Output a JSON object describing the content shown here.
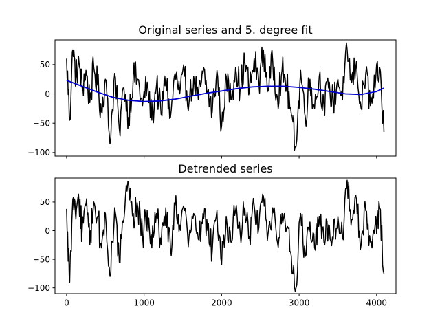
{
  "chart_data": [
    {
      "type": "line",
      "title": "Original series and 5. degree fit",
      "xlabel": "",
      "ylabel": "",
      "xlim": [
        -150,
        4250
      ],
      "ylim": [
        -106,
        92
      ],
      "xticks": [
        0,
        1000,
        2000,
        3000,
        4000
      ],
      "xtick_labels_visible": false,
      "yticks": [
        -100,
        -50,
        0,
        50
      ],
      "ytick_labels": [
        "−100",
        "−50",
        "0",
        "50"
      ],
      "grid": false,
      "series": [
        {
          "color": "#000000",
          "style": "noisy",
          "x": [
            0,
            40,
            80,
            120,
            160,
            200,
            250,
            300,
            350,
            400,
            450,
            500,
            560,
            620,
            680,
            740,
            800,
            860,
            920,
            980,
            1040,
            1100,
            1160,
            1220,
            1280,
            1340,
            1400,
            1460,
            1520,
            1580,
            1640,
            1700,
            1760,
            1820,
            1880,
            1940,
            2000,
            2060,
            2120,
            2180,
            2240,
            2300,
            2360,
            2420,
            2480,
            2540,
            2600,
            2660,
            2720,
            2780,
            2840,
            2900,
            2960,
            3020,
            3080,
            3140,
            3200,
            3260,
            3320,
            3380,
            3440,
            3500,
            3560,
            3620,
            3680,
            3740,
            3800,
            3860,
            3920,
            3980,
            4040,
            4095
          ],
          "y": [
            60,
            -45,
            75,
            30,
            55,
            10,
            40,
            -15,
            45,
            15,
            -30,
            25,
            -85,
            35,
            -60,
            10,
            -40,
            30,
            25,
            -20,
            20,
            -45,
            15,
            -35,
            30,
            -40,
            35,
            0,
            30,
            -15,
            30,
            -10,
            35,
            5,
            -30,
            40,
            -55,
            30,
            -10,
            45,
            10,
            55,
            5,
            60,
            20,
            75,
            10,
            55,
            -5,
            40,
            15,
            -35,
            -90,
            40,
            -40,
            25,
            -25,
            30,
            -20,
            10,
            -15,
            25,
            -10,
            75,
            20,
            55,
            -25,
            35,
            -20,
            10,
            45,
            -65
          ]
        },
        {
          "color": "#0000cc",
          "style": "smooth-fit",
          "x": [
            0,
            200,
            400,
            600,
            800,
            1000,
            1200,
            1400,
            1600,
            1800,
            2000,
            2200,
            2400,
            2600,
            2800,
            3000,
            3200,
            3400,
            3600,
            3800,
            4000,
            4095
          ],
          "y": [
            23,
            13,
            3,
            -6,
            -11,
            -13,
            -12,
            -9,
            -4,
            1,
            5,
            9,
            12,
            13,
            13,
            11,
            8,
            4,
            0,
            -1,
            4,
            10
          ]
        }
      ]
    },
    {
      "type": "line",
      "title": "Detrended series",
      "xlabel": "",
      "ylabel": "",
      "xlim": [
        -150,
        4250
      ],
      "ylim": [
        -110,
        92
      ],
      "xticks": [
        0,
        1000,
        2000,
        3000,
        4000
      ],
      "xtick_labels": [
        "0",
        "1000",
        "2000",
        "3000",
        "4000"
      ],
      "yticks": [
        -100,
        -50,
        0,
        50
      ],
      "ytick_labels": [
        "−100",
        "−50",
        "0",
        "50"
      ],
      "grid": false,
      "series": [
        {
          "color": "#000000",
          "style": "noisy",
          "x": [
            0,
            40,
            80,
            120,
            160,
            200,
            250,
            300,
            350,
            400,
            450,
            500,
            560,
            620,
            680,
            740,
            800,
            860,
            920,
            980,
            1040,
            1100,
            1160,
            1220,
            1280,
            1340,
            1400,
            1460,
            1520,
            1580,
            1640,
            1700,
            1760,
            1820,
            1880,
            1940,
            2000,
            2060,
            2120,
            2180,
            2240,
            2300,
            2360,
            2420,
            2480,
            2540,
            2600,
            2660,
            2720,
            2780,
            2840,
            2900,
            2960,
            3020,
            3080,
            3140,
            3200,
            3260,
            3320,
            3380,
            3440,
            3500,
            3560,
            3620,
            3680,
            3740,
            3800,
            3860,
            3920,
            3980,
            4040,
            4095
          ],
          "y": [
            38,
            -90,
            55,
            20,
            50,
            0,
            45,
            -25,
            50,
            25,
            -30,
            30,
            -80,
            40,
            -55,
            20,
            85,
            30,
            40,
            -10,
            35,
            -30,
            30,
            -25,
            40,
            -30,
            45,
            10,
            35,
            -10,
            30,
            -15,
            30,
            0,
            -35,
            35,
            -60,
            25,
            -20,
            35,
            -5,
            40,
            -10,
            45,
            5,
            60,
            -5,
            40,
            -20,
            30,
            5,
            -45,
            -100,
            30,
            -45,
            15,
            -30,
            25,
            -20,
            10,
            -15,
            25,
            -10,
            90,
            20,
            55,
            -25,
            35,
            -20,
            10,
            40,
            -75
          ]
        }
      ]
    }
  ]
}
